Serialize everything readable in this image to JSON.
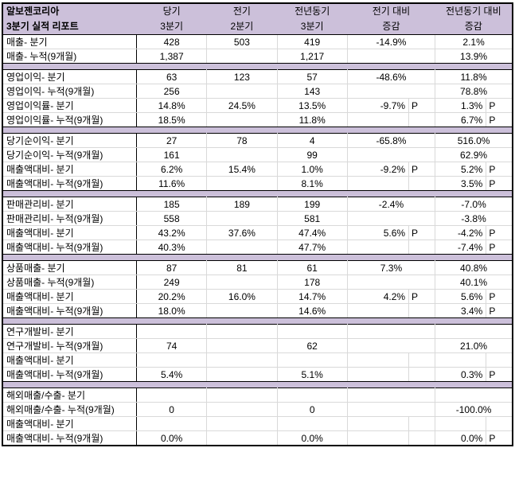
{
  "report": {
    "title_line1": "알보젠코리아",
    "title_line2": "3분기 실적 리포트"
  },
  "columns": [
    {
      "line1": "당기",
      "line2": "3분기"
    },
    {
      "line1": "전기",
      "line2": "2분기"
    },
    {
      "line1": "전년동기",
      "line2": "3분기"
    },
    {
      "line1": "전기 대비",
      "line2": "증감"
    },
    {
      "line1": "전년동기 대비",
      "line2": "증감"
    }
  ],
  "colors": {
    "header_bg": "#CCC0DA",
    "band_bg": "#CCC0DA",
    "grid_line": "#D9D9D9",
    "border": "#000000",
    "text": "#000000"
  },
  "sections": [
    {
      "rows": [
        {
          "label": "매출- 분기",
          "values": [
            "428",
            "503",
            "419"
          ],
          "d1": {
            "val": "-14.9%",
            "p": "",
            "split": false
          },
          "d2": {
            "val": "2.1%",
            "p": "",
            "split": false
          }
        },
        {
          "label": "매출- 누적(9개월)",
          "values": [
            "1,387",
            "",
            "1,217"
          ],
          "d1": {
            "val": "",
            "p": "",
            "split": false
          },
          "d2": {
            "val": "13.9%",
            "p": "",
            "split": false
          }
        }
      ]
    },
    {
      "rows": [
        {
          "label": "영업이익- 분기",
          "values": [
            "63",
            "123",
            "57"
          ],
          "d1": {
            "val": "-48.6%",
            "p": "",
            "split": false
          },
          "d2": {
            "val": "11.8%",
            "p": "",
            "split": false
          }
        },
        {
          "label": "영업이익- 누적(9개월)",
          "values": [
            "256",
            "",
            "143"
          ],
          "d1": {
            "val": "",
            "p": "",
            "split": false
          },
          "d2": {
            "val": "78.8%",
            "p": "",
            "split": false
          }
        },
        {
          "label": "영업이익률- 분기",
          "values": [
            "14.8%",
            "24.5%",
            "13.5%"
          ],
          "d1": {
            "val": "-9.7%",
            "p": "P",
            "split": true
          },
          "d2": {
            "val": "1.3%",
            "p": "P",
            "split": true
          }
        },
        {
          "label": "영업이익률- 누적(9개월)",
          "values": [
            "18.5%",
            "",
            "11.8%"
          ],
          "d1": {
            "val": "",
            "p": "",
            "split": true
          },
          "d2": {
            "val": "6.7%",
            "p": "P",
            "split": true
          }
        }
      ]
    },
    {
      "rows": [
        {
          "label": "당기순이익- 분기",
          "values": [
            "27",
            "78",
            "4"
          ],
          "d1": {
            "val": "-65.8%",
            "p": "",
            "split": false
          },
          "d2": {
            "val": "516.0%",
            "p": "",
            "split": false
          }
        },
        {
          "label": "당기순이익- 누적(9개월)",
          "values": [
            "161",
            "",
            "99"
          ],
          "d1": {
            "val": "",
            "p": "",
            "split": false
          },
          "d2": {
            "val": "62.9%",
            "p": "",
            "split": false
          }
        },
        {
          "label": "매출액대비- 분기",
          "values": [
            "6.2%",
            "15.4%",
            "1.0%"
          ],
          "d1": {
            "val": "-9.2%",
            "p": "P",
            "split": true
          },
          "d2": {
            "val": "5.2%",
            "p": "P",
            "split": true
          }
        },
        {
          "label": "매출액대비- 누적(9개월)",
          "values": [
            "11.6%",
            "",
            "8.1%"
          ],
          "d1": {
            "val": "",
            "p": "",
            "split": true
          },
          "d2": {
            "val": "3.5%",
            "p": "P",
            "split": true
          }
        }
      ]
    },
    {
      "rows": [
        {
          "label": "판매관리비- 분기",
          "values": [
            "185",
            "189",
            "199"
          ],
          "d1": {
            "val": "-2.4%",
            "p": "",
            "split": false
          },
          "d2": {
            "val": "-7.0%",
            "p": "",
            "split": false
          }
        },
        {
          "label": "판매관리비- 누적(9개월)",
          "values": [
            "558",
            "",
            "581"
          ],
          "d1": {
            "val": "",
            "p": "",
            "split": false
          },
          "d2": {
            "val": "-3.8%",
            "p": "",
            "split": false
          }
        },
        {
          "label": "매출액대비- 분기",
          "values": [
            "43.2%",
            "37.6%",
            "47.4%"
          ],
          "d1": {
            "val": "5.6%",
            "p": "P",
            "split": true
          },
          "d2": {
            "val": "-4.2%",
            "p": "P",
            "split": true
          }
        },
        {
          "label": "매출액대비- 누적(9개월)",
          "values": [
            "40.3%",
            "",
            "47.7%"
          ],
          "d1": {
            "val": "",
            "p": "",
            "split": true
          },
          "d2": {
            "val": "-7.4%",
            "p": "P",
            "split": true
          }
        }
      ]
    },
    {
      "rows": [
        {
          "label": "상품매출- 분기",
          "values": [
            "87",
            "81",
            "61"
          ],
          "d1": {
            "val": "7.3%",
            "p": "",
            "split": false
          },
          "d2": {
            "val": "40.8%",
            "p": "",
            "split": false
          }
        },
        {
          "label": "상품매출- 누적(9개월)",
          "values": [
            "249",
            "",
            "178"
          ],
          "d1": {
            "val": "",
            "p": "",
            "split": false
          },
          "d2": {
            "val": "40.1%",
            "p": "",
            "split": false
          }
        },
        {
          "label": "매출액대비- 분기",
          "values": [
            "20.2%",
            "16.0%",
            "14.7%"
          ],
          "d1": {
            "val": "4.2%",
            "p": "P",
            "split": true
          },
          "d2": {
            "val": "5.6%",
            "p": "P",
            "split": true
          }
        },
        {
          "label": "매출액대비- 누적(9개월)",
          "values": [
            "18.0%",
            "",
            "14.6%"
          ],
          "d1": {
            "val": "",
            "p": "",
            "split": true
          },
          "d2": {
            "val": "3.4%",
            "p": "P",
            "split": true
          }
        }
      ]
    },
    {
      "rows": [
        {
          "label": "연구개발비- 분기",
          "values": [
            "",
            "",
            ""
          ],
          "d1": {
            "val": "",
            "p": "",
            "split": false
          },
          "d2": {
            "val": "",
            "p": "",
            "split": false
          }
        },
        {
          "label": "연구개발비- 누적(9개월)",
          "values": [
            "74",
            "",
            "62"
          ],
          "d1": {
            "val": "",
            "p": "",
            "split": false
          },
          "d2": {
            "val": "21.0%",
            "p": "",
            "split": false
          }
        },
        {
          "label": "매출액대비- 분기",
          "values": [
            "",
            "",
            ""
          ],
          "d1": {
            "val": "",
            "p": "",
            "split": true
          },
          "d2": {
            "val": "",
            "p": "",
            "split": true
          }
        },
        {
          "label": "매출액대비- 누적(9개월)",
          "values": [
            "5.4%",
            "",
            "5.1%"
          ],
          "d1": {
            "val": "",
            "p": "",
            "split": true
          },
          "d2": {
            "val": "0.3%",
            "p": "P",
            "split": true
          }
        }
      ]
    },
    {
      "rows": [
        {
          "label": "해외매출/수출- 분기",
          "values": [
            "",
            "",
            ""
          ],
          "d1": {
            "val": "",
            "p": "",
            "split": false
          },
          "d2": {
            "val": "",
            "p": "",
            "split": false
          }
        },
        {
          "label": "해외매출/수출- 누적(9개월)",
          "values": [
            "0",
            "",
            "0"
          ],
          "d1": {
            "val": "",
            "p": "",
            "split": false
          },
          "d2": {
            "val": "-100.0%",
            "p": "",
            "split": false
          }
        },
        {
          "label": "매출액대비- 분기",
          "values": [
            "",
            "",
            ""
          ],
          "d1": {
            "val": "",
            "p": "",
            "split": true
          },
          "d2": {
            "val": "",
            "p": "",
            "split": true
          }
        },
        {
          "label": "매출액대비- 누적(9개월)",
          "values": [
            "0.0%",
            "",
            "0.0%"
          ],
          "d1": {
            "val": "",
            "p": "",
            "split": true
          },
          "d2": {
            "val": "0.0%",
            "p": "P",
            "split": true
          }
        }
      ]
    }
  ]
}
